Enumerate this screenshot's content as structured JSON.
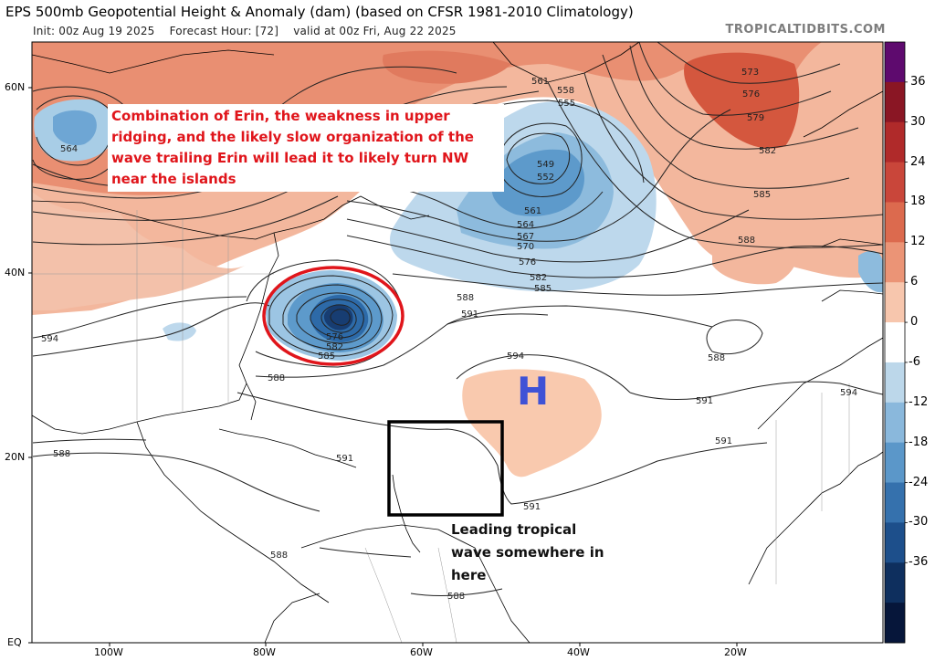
{
  "header": {
    "title": "EPS 500mb Geopotential Height & Anomaly (dam) (based on CFSR 1981-2010 Climatology)",
    "init": "Init: 00z Aug 19 2025",
    "forecast_hour": "Forecast Hour: [72]",
    "valid": "valid at 00z Fri, Aug 22 2025",
    "brand": "TROPICALTIDBITS.COM"
  },
  "axes": {
    "lat_labels": [
      "60N",
      "40N",
      "20N",
      "EQ"
    ],
    "lon_labels": [
      "100W",
      "80W",
      "60W",
      "40W",
      "20W"
    ]
  },
  "colorbar": {
    "labels": [
      "36",
      "30",
      "24",
      "18",
      "12",
      "6",
      "0",
      "-6",
      "-12",
      "-18",
      "-24",
      "-30",
      "-36"
    ],
    "colors": [
      "#5e0a6e",
      "#8a1624",
      "#b02a2a",
      "#c9463a",
      "#dc6a4e",
      "#eb9476",
      "#f7c6ad",
      "#ffffff",
      "#bcd7ea",
      "#8ab8dc",
      "#5b97c9",
      "#3571ad",
      "#1d4f8b",
      "#0e2f5e",
      "#06163a"
    ]
  },
  "annotations": {
    "note": "Combination of Erin, the weakness in upper ridging, and the likely slow organization of the wave trailing Erin will lead it to likely turn NW near the islands",
    "note_color": "#e0151b",
    "wave_note": "Leading tropical wave somewhere in here",
    "high_label": "H",
    "high_color": "#3f52d6",
    "circle_color": "#e0151b"
  },
  "contour_labels": {
    "c564": "564",
    "c561a": "561",
    "c558": "558",
    "c555": "555",
    "c573": "573",
    "c576a": "576",
    "c579": "579",
    "c582a": "582",
    "c585a": "585",
    "c588a": "588",
    "c549": "549",
    "c552": "552",
    "c561b": "561",
    "c564b": "564",
    "c567": "567",
    "c570": "570",
    "c576b": "576",
    "c582b": "582",
    "c585b": "585",
    "c588b": "588",
    "c591a": "591",
    "c594a": "594",
    "c576c": "576",
    "c582c": "582",
    "c585c": "585",
    "c588c": "588",
    "c594b": "594",
    "c588d": "588",
    "c591b": "591",
    "c591c": "591",
    "c594c": "594",
    "c588e": "588",
    "c591d": "591",
    "c591e": "591",
    "c588f": "588",
    "c588g": "588"
  }
}
